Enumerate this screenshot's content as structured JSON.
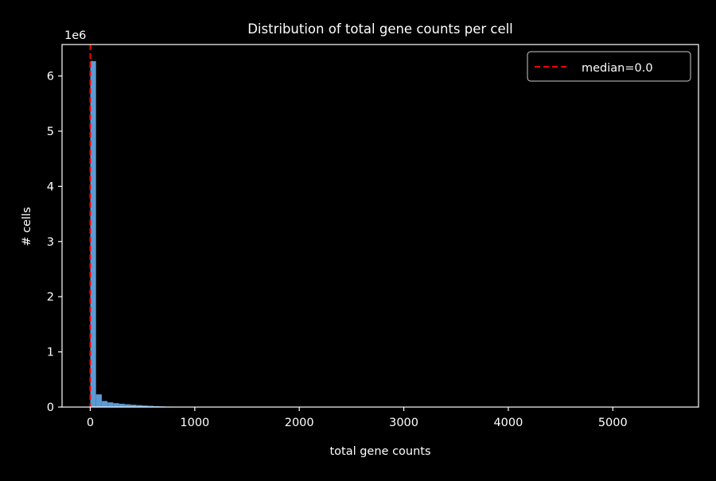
{
  "chart_data": {
    "type": "bar",
    "title": "Distribution of total gene counts per cell",
    "xlabel": "total gene counts",
    "ylabel": "# cells",
    "y_offset_text": "1e6",
    "xlim": [
      -270,
      5820
    ],
    "ylim": [
      0,
      6570000
    ],
    "x_ticks": [
      0,
      1000,
      2000,
      3000,
      4000,
      5000
    ],
    "x_tick_labels": [
      "0",
      "1000",
      "2000",
      "3000",
      "4000",
      "5000"
    ],
    "y_ticks": [
      0,
      1000000,
      2000000,
      3000000,
      4000000,
      5000000,
      6000000
    ],
    "y_tick_labels": [
      "0",
      "1",
      "2",
      "3",
      "4",
      "5",
      "6"
    ],
    "bar_color": "#5b9bd5",
    "bins": [
      {
        "x0": 0,
        "x1": 55,
        "value": 6270000
      },
      {
        "x0": 55,
        "x1": 110,
        "value": 230000
      },
      {
        "x0": 110,
        "x1": 165,
        "value": 110000
      },
      {
        "x0": 165,
        "x1": 220,
        "value": 85000
      },
      {
        "x0": 220,
        "x1": 275,
        "value": 70000
      },
      {
        "x0": 275,
        "x1": 330,
        "value": 60000
      },
      {
        "x0": 330,
        "x1": 385,
        "value": 50000
      },
      {
        "x0": 385,
        "x1": 440,
        "value": 42000
      },
      {
        "x0": 440,
        "x1": 495,
        "value": 35000
      },
      {
        "x0": 495,
        "x1": 550,
        "value": 28000
      },
      {
        "x0": 550,
        "x1": 605,
        "value": 22000
      },
      {
        "x0": 605,
        "x1": 660,
        "value": 17000
      },
      {
        "x0": 660,
        "x1": 715,
        "value": 12000
      },
      {
        "x0": 715,
        "x1": 770,
        "value": 8000
      },
      {
        "x0": 770,
        "x1": 825,
        "value": 5000
      },
      {
        "x0": 825,
        "x1": 880,
        "value": 3000
      },
      {
        "x0": 880,
        "x1": 935,
        "value": 2000
      },
      {
        "x0": 935,
        "x1": 990,
        "value": 1500
      },
      {
        "x0": 990,
        "x1": 1045,
        "value": 1000
      }
    ],
    "median_line": {
      "x": 0,
      "color": "#ff0000",
      "style": "dashed"
    },
    "legend": {
      "entries": [
        "median=0.0"
      ],
      "placement": "top-right"
    },
    "grid": false
  }
}
